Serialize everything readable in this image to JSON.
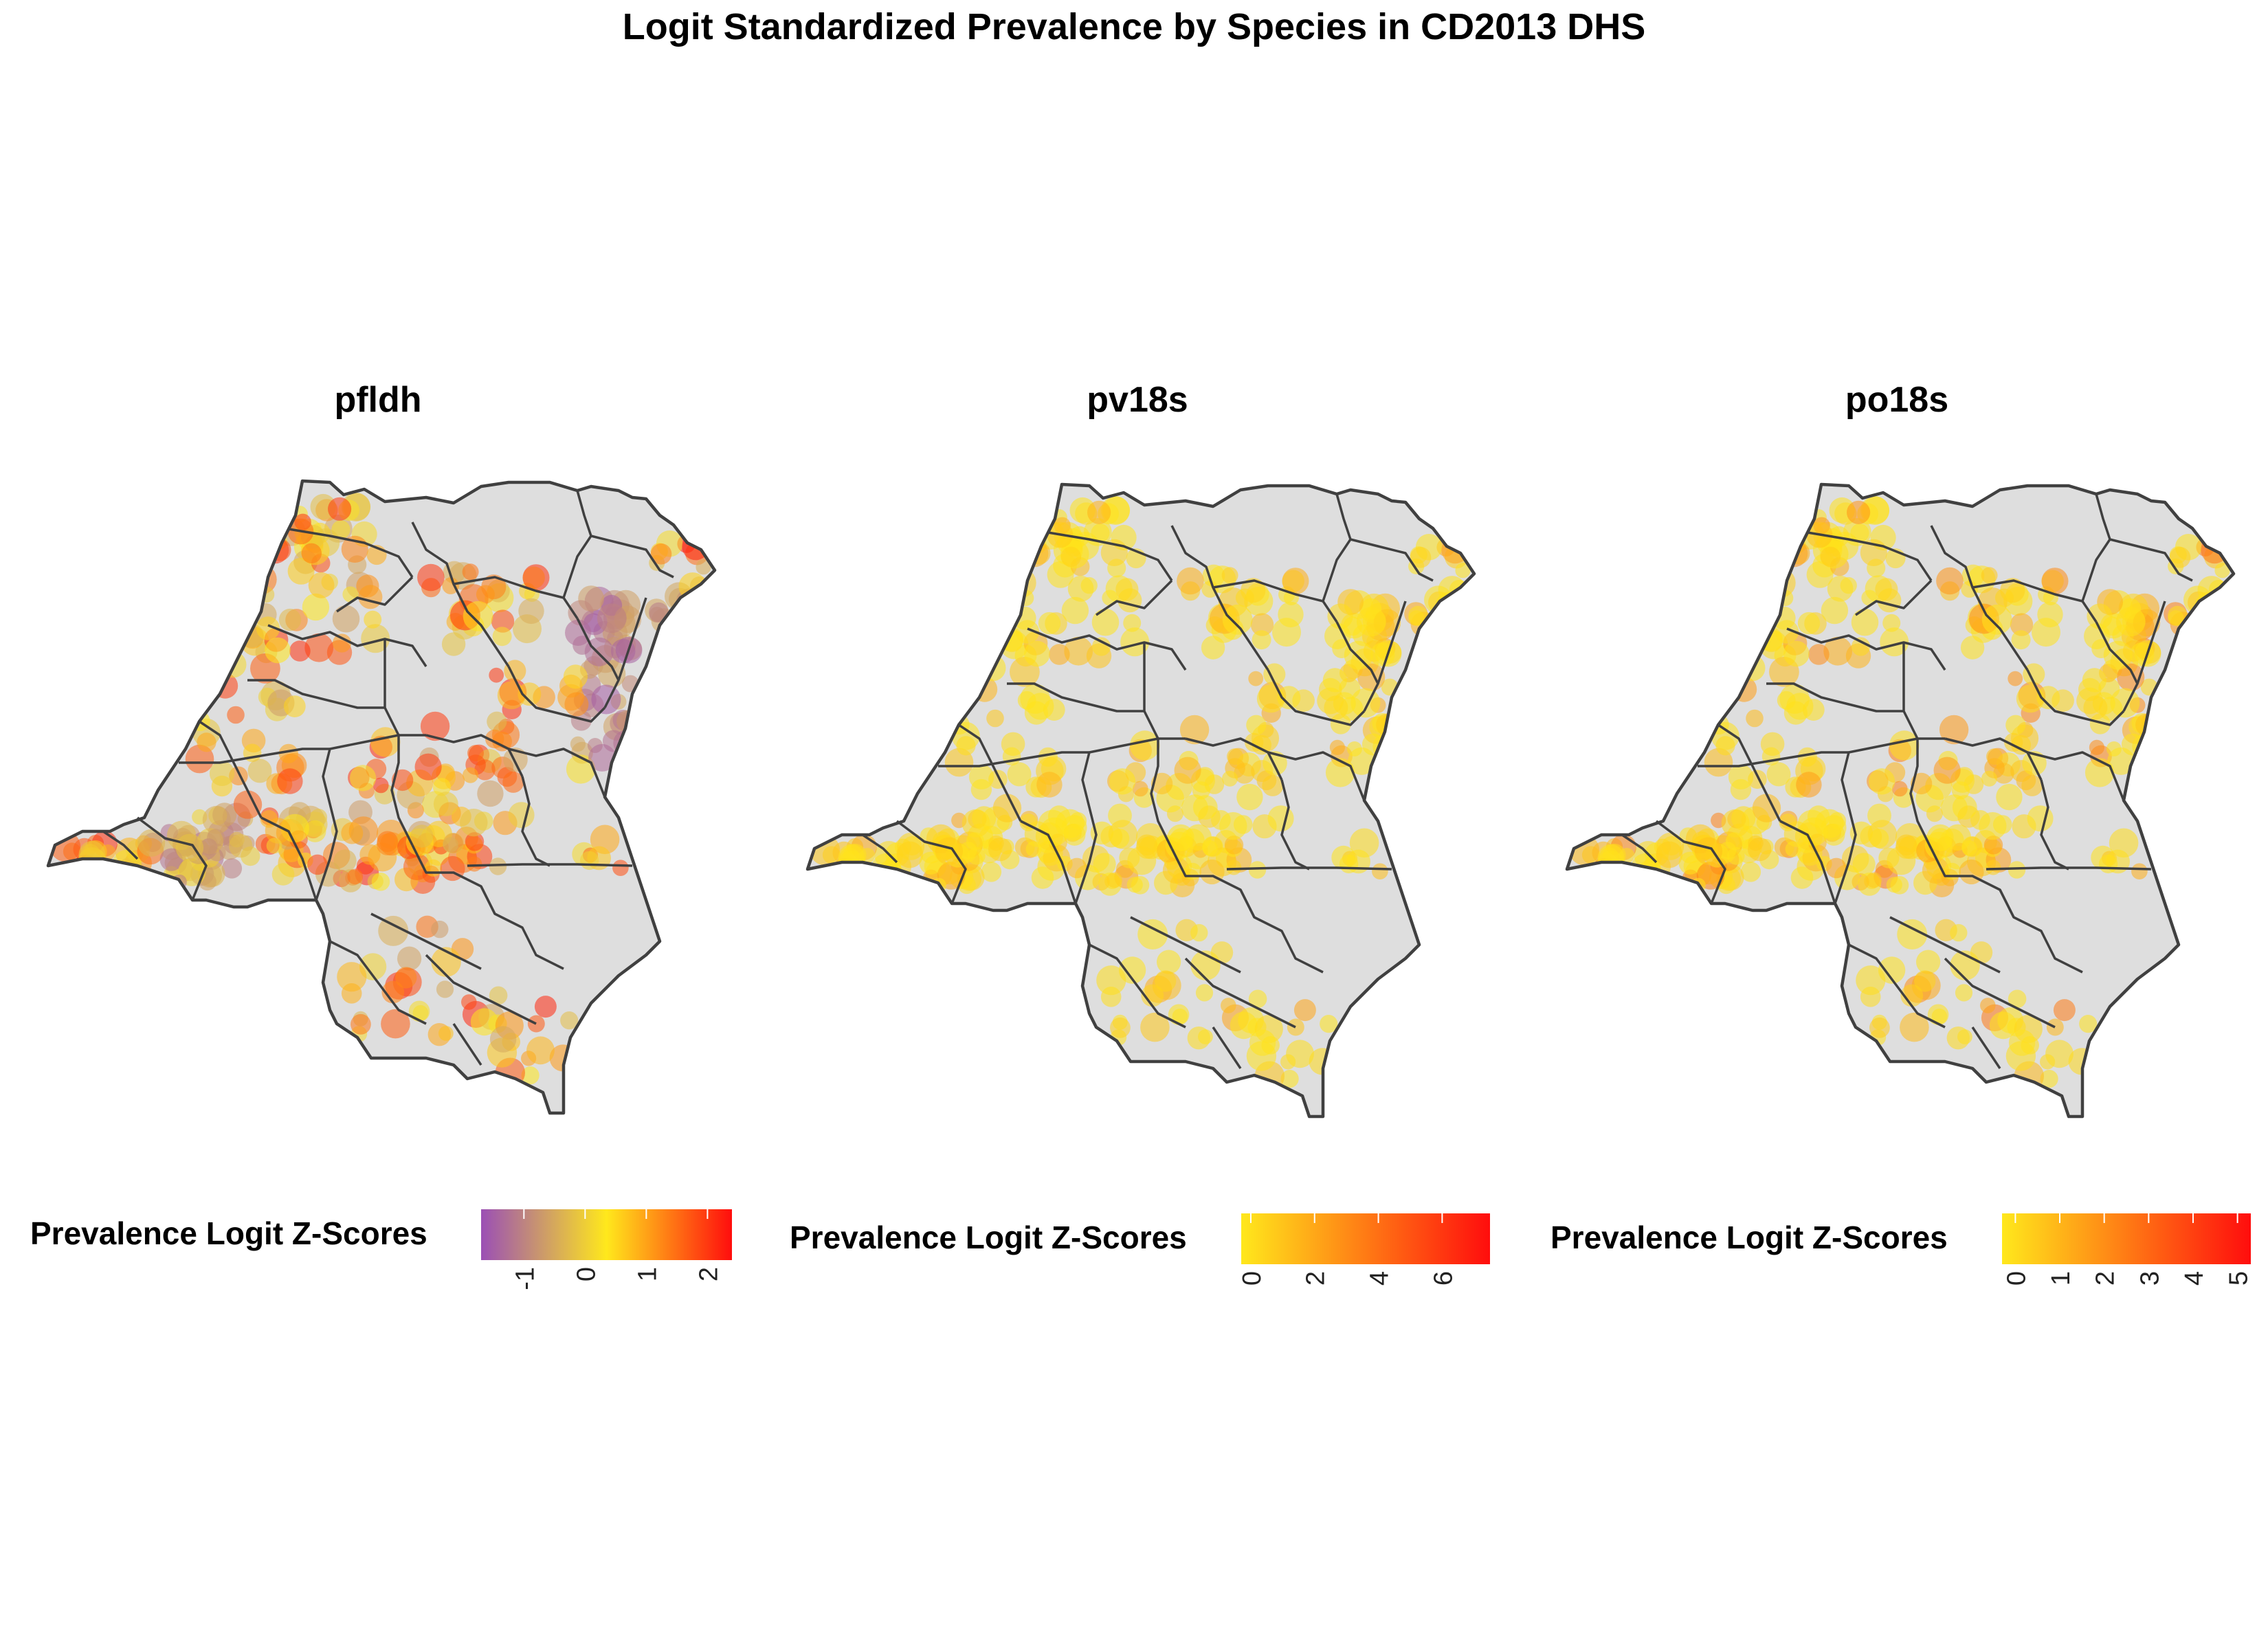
{
  "title": "Logit Standardized Prevalence by Species in CD2013 DHS",
  "legend_label": "Prevalence Logit Z-Scores",
  "colors": {
    "country_fill": "#dedede",
    "border": "#404040",
    "scale_low": "#9b4fb5",
    "scale_mid": "#ffe81c",
    "scale_high": "#ff0d0d"
  },
  "chart_data": [
    {
      "type": "scatter",
      "panel_title": "pfldh",
      "legend_title": "Prevalence Logit Z-Scores",
      "legend_ticks": [
        "-1",
        "0",
        "1",
        "2"
      ],
      "color_scale": {
        "min": -1.7,
        "max": 2.4,
        "colors": [
          "#9b4fb5",
          "#ffe81c",
          "#ff0d0d"
        ]
      }
    },
    {
      "type": "scatter",
      "panel_title": "pv18s",
      "legend_title": "Prevalence Logit Z-Scores",
      "legend_ticks": [
        "0",
        "2",
        "4",
        "6"
      ],
      "color_scale": {
        "min": -0.3,
        "max": 7.5,
        "colors": [
          "#ffe81c",
          "#ff0d0d"
        ]
      }
    },
    {
      "type": "scatter",
      "panel_title": "po18s",
      "legend_title": "Prevalence Logit Z-Scores",
      "legend_ticks": [
        "0",
        "1",
        "2",
        "3",
        "4",
        "5"
      ],
      "color_scale": {
        "min": -0.3,
        "max": 5.3,
        "colors": [
          "#ffe81c",
          "#ff0d0d"
        ]
      }
    }
  ]
}
